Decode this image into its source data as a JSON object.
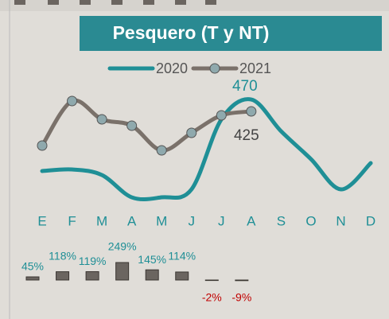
{
  "chart_data": [
    {
      "type": "line",
      "title": "Pesquero (T y NT)",
      "categories": [
        "E",
        "F",
        "M",
        "A",
        "M",
        "J",
        "J",
        "A",
        "S",
        "O",
        "N",
        "D"
      ],
      "ylim": [
        0,
        600
      ],
      "series": [
        {
          "name": "2020",
          "color": "#1f8f96",
          "values": [
            200,
            206,
            185,
            101,
            101,
            131,
            395,
            470,
            350,
            245,
            131,
            230
          ]
        },
        {
          "name": "2021",
          "color": "#7a716a",
          "values": [
            296,
            464,
            395,
            371,
            278,
            344,
            410,
            425,
            null,
            null,
            null,
            null
          ]
        }
      ]
    },
    {
      "type": "bar",
      "color": "#6b6560",
      "values": [
        45,
        118,
        119,
        249,
        145,
        114,
        -2,
        -9
      ],
      "value_labels": [
        "45%",
        "118%",
        "119%",
        "249%",
        "145%",
        "114%",
        "-2%",
        "-9%"
      ],
      "ylim": [
        -100,
        260
      ]
    }
  ]
}
